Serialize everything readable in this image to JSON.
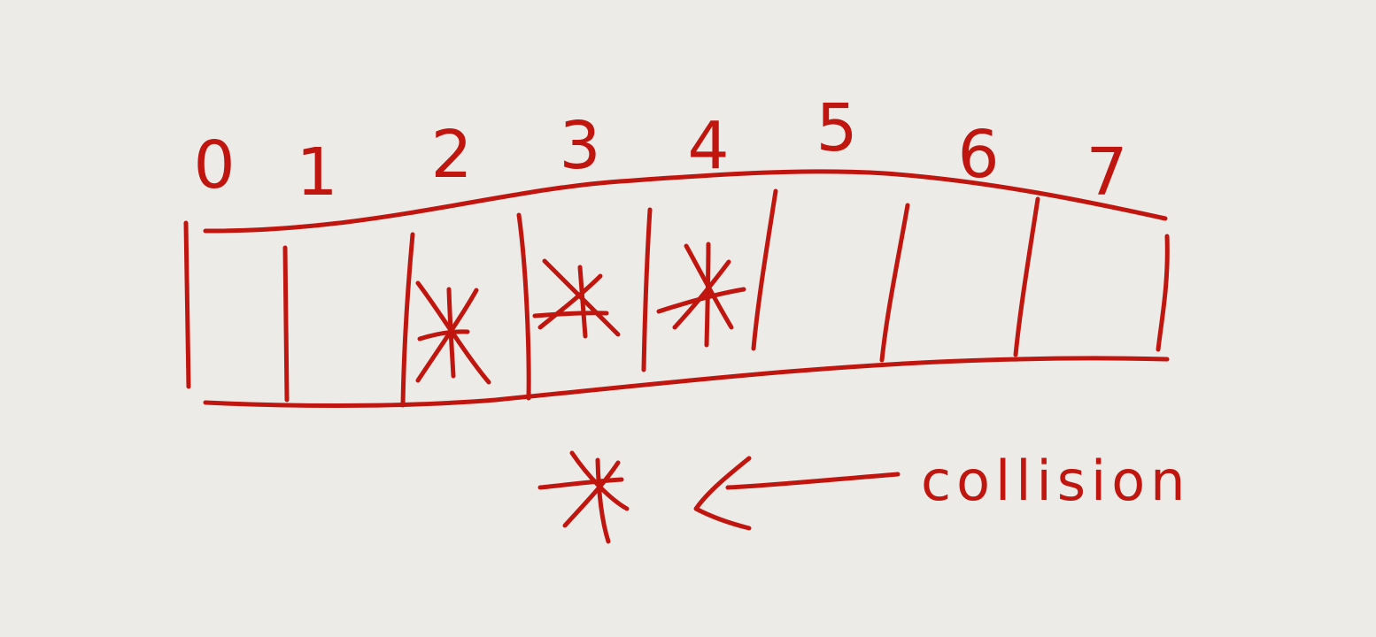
{
  "diagram": {
    "ink_color": "#c0160f",
    "background": "#ecebe7",
    "slot_indices": [
      "0",
      "1",
      "2",
      "3",
      "4",
      "5",
      "6",
      "7"
    ],
    "collision_slots": [
      2,
      3,
      4
    ],
    "legend": {
      "symbol": "collision-asterisk",
      "label": "collision"
    }
  }
}
